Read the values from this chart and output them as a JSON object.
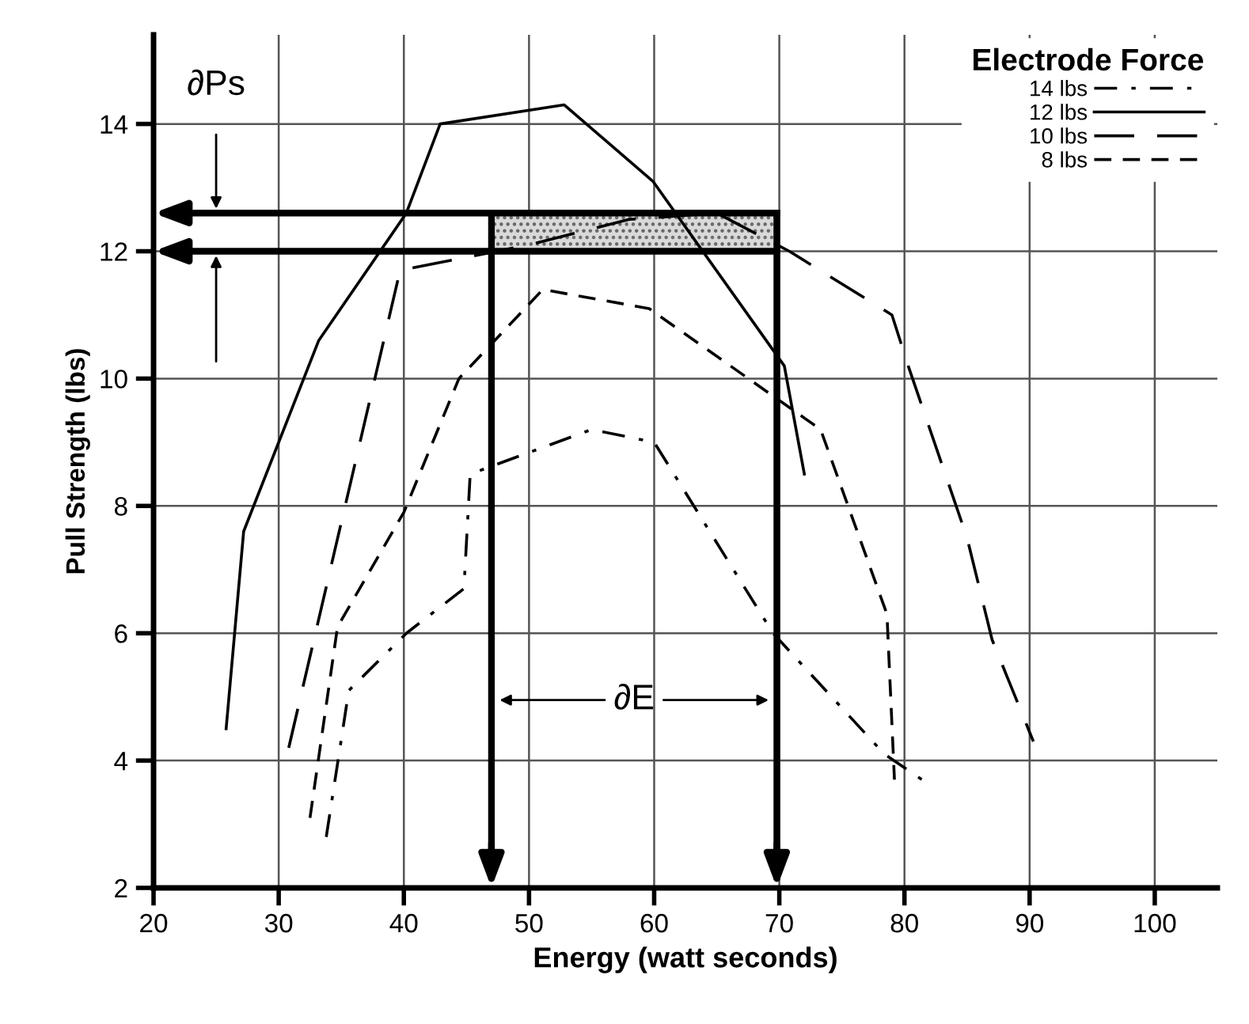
{
  "chart_data": {
    "type": "line",
    "xlabel": "Energy (watt seconds)",
    "ylabel": "Pull Strength (lbs)",
    "legend_title": "Electrode Force",
    "legend": "top right",
    "grid": true,
    "marker": "none",
    "xlim": [
      20,
      105
    ],
    "xticks": [
      20,
      30,
      40,
      50,
      60,
      70,
      80,
      90,
      100
    ],
    "ylim": [
      2,
      15.4
    ],
    "yticks": [
      2,
      4,
      6,
      8,
      10,
      12,
      14
    ],
    "series": [
      {
        "name": "14 lbs",
        "color": "#000000",
        "line_style": "dashdot",
        "x": [
          33.8,
          35.6,
          40.2,
          44.8,
          45.3,
          55,
          60,
          69.5,
          78.4,
          81.4
        ],
        "values": [
          2.8,
          5.1,
          6.0,
          6.7,
          8.5,
          9.2,
          9.0,
          6.0,
          4.1,
          3.7
        ]
      },
      {
        "name": "12 lbs",
        "color": "#000000",
        "line_style": "solid",
        "x": [
          25.8,
          27.2,
          33.2,
          40.2,
          42.9,
          52.8,
          59.9,
          70.4,
          72.0
        ],
        "values": [
          4.5,
          7.6,
          10.6,
          12.6,
          14.0,
          14.3,
          13.1,
          10.2,
          8.5
        ]
      },
      {
        "name": "10 lbs",
        "color": "#000000",
        "line_style": "longdash",
        "x": [
          30.8,
          39.7,
          50,
          58,
          65,
          70.8,
          79,
          80.3,
          85,
          87,
          90.3
        ],
        "values": [
          4.2,
          11.7,
          12.1,
          12.5,
          12.6,
          12.0,
          11.0,
          10.2,
          7.5,
          5.9,
          4.3
        ]
      },
      {
        "name": "8 lbs",
        "color": "#000000",
        "line_style": "dashed",
        "x": [
          32.5,
          34.7,
          40,
          44.4,
          51.1,
          59.6,
          73.3,
          78.6,
          79.2
        ],
        "values": [
          3.1,
          6.1,
          7.9,
          10.0,
          11.4,
          11.1,
          9.2,
          6.3,
          3.7
        ]
      }
    ],
    "ref_lines": [
      {
        "axis": "y",
        "value": 12.6,
        "label": null
      },
      {
        "axis": "y",
        "value": 12,
        "label": null
      },
      {
        "axis": "x",
        "value": 47,
        "label": null
      },
      {
        "axis": "x",
        "value": 69.8,
        "label": null
      }
    ],
    "bands": [
      {
        "axis": "y",
        "from": 12,
        "to": 12.6,
        "label": null,
        "color": "#d9d9d9"
      }
    ],
    "annotations": [
      "∂Ps",
      "∂E"
    ]
  }
}
